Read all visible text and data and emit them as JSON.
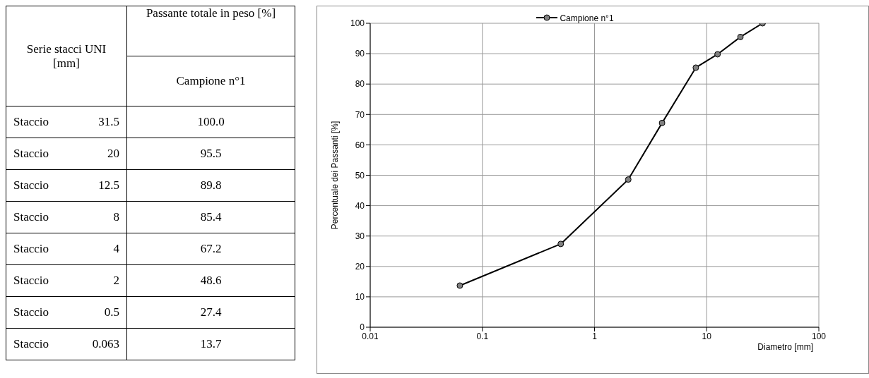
{
  "chart_data": [
    {
      "type": "other",
      "annotations": [
        "Serie stacci UNI [mm]",
        "Passante totale in peso [%]",
        "Staccio"
      ],
      "categories": [
        "31.5",
        "20",
        "12.5",
        "8",
        "4",
        "2",
        "0.5",
        "0.063"
      ],
      "series": [
        {
          "name": "Campione n°1",
          "values": [
            100.0,
            95.5,
            89.8,
            85.4,
            67.2,
            48.6,
            27.4,
            13.7
          ],
          "value_labels": [
            "100.0",
            "95.5",
            "89.8",
            "85.4",
            "67.2",
            "48.6",
            "27.4",
            "13.7"
          ]
        }
      ],
      "data_labels": true
    },
    {
      "type": "line",
      "xlabel": "Diametro [mm]",
      "ylabel": "Percentuale dei Passanti [%]",
      "x": [
        31.5,
        20,
        12.5,
        8,
        4,
        2,
        0.5,
        0.063
      ],
      "series": [
        {
          "name": "Campione n°1",
          "color": "#000000",
          "values": [
            100.0,
            95.5,
            89.8,
            85.4,
            67.2,
            48.6,
            27.4,
            13.7
          ]
        }
      ],
      "xlim": [
        0.01,
        100
      ],
      "xticks": [
        0.01,
        0.1,
        1,
        10,
        100
      ],
      "ylim": [
        0,
        100
      ],
      "yticks": [
        0,
        10,
        20,
        30,
        40,
        50,
        60,
        70,
        80,
        90,
        100
      ],
      "log": "x",
      "grid": true,
      "legend": "top",
      "marker": "circle",
      "line_style": "solid"
    }
  ]
}
